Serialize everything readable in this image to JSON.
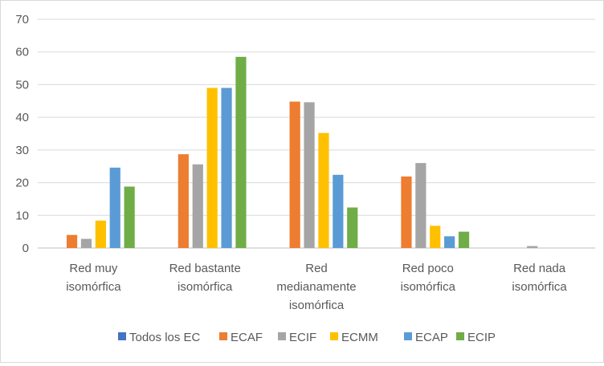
{
  "chart_data": {
    "type": "bar",
    "title": "",
    "xlabel": "",
    "ylabel": "",
    "ylim": [
      0,
      70
    ],
    "yticks": [
      0,
      10,
      20,
      30,
      40,
      50,
      60,
      70
    ],
    "grid": true,
    "legend_position": "bottom",
    "categories": [
      [
        "Red muy",
        "isomórfica"
      ],
      [
        "Red bastante",
        "isomórfica"
      ],
      [
        "Red",
        "medianamente",
        "isomórfica"
      ],
      [
        "Red poco",
        "isomórfica"
      ],
      [
        "Red nada",
        "isomórfica"
      ]
    ],
    "series": [
      {
        "name": "Todos los EC",
        "color": "#4472c4",
        "values": [
          0,
          0,
          0,
          0,
          0
        ]
      },
      {
        "name": "ECAF",
        "color": "#ed7d31",
        "values": [
          4,
          28.7,
          44.8,
          21.9,
          0
        ]
      },
      {
        "name": "ECIF",
        "color": "#a5a5a5",
        "values": [
          2.8,
          25.6,
          44.6,
          26,
          0.6
        ]
      },
      {
        "name": "ECMM",
        "color": "#ffc000",
        "values": [
          8.4,
          49,
          35.2,
          6.8,
          0
        ]
      },
      {
        "name": "ECAP",
        "color": "#5b9bd5",
        "values": [
          24.6,
          49,
          22.4,
          3.6,
          0
        ]
      },
      {
        "name": "ECIP",
        "color": "#70ad47",
        "values": [
          18.8,
          58.5,
          12.4,
          5,
          0
        ]
      }
    ]
  }
}
